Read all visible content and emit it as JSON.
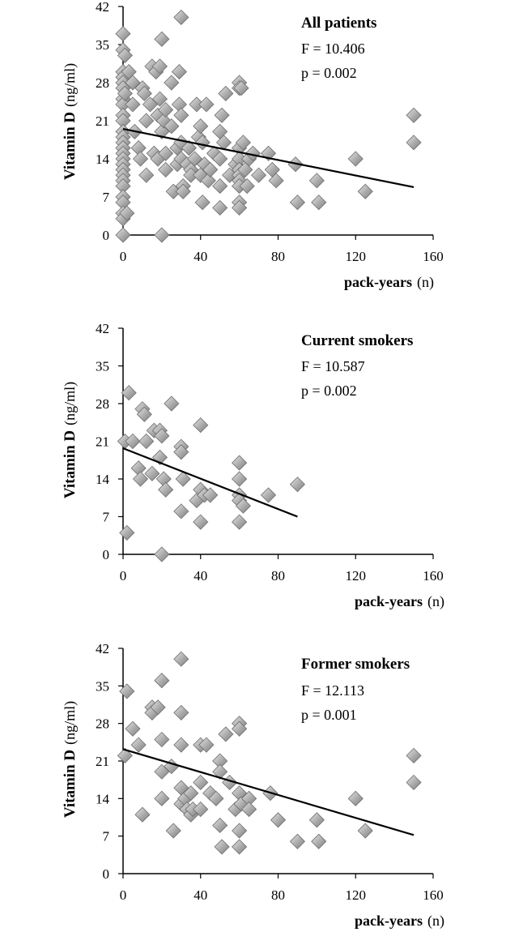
{
  "chart_data": [
    {
      "type": "scatter",
      "title": "All patients",
      "annotations": [
        "F = 10.406",
        "p = 0.002"
      ],
      "ylabel_bold": "Vitamin D",
      "ylabel_unit": "(ng/ml)",
      "xlabel_bold": "pack-years",
      "xlabel_unit": "(n)",
      "xlim": [
        0,
        160
      ],
      "ylim": [
        0,
        42
      ],
      "xticks": [
        "0",
        "40",
        "80",
        "120",
        "160"
      ],
      "yticks": [
        "0",
        "7",
        "14",
        "21",
        "28",
        "35",
        "42"
      ],
      "grid": false,
      "trendline": {
        "x": [
          0,
          150
        ],
        "y": [
          19.5,
          8.8
        ]
      },
      "points": [
        [
          0,
          37
        ],
        [
          0,
          34
        ],
        [
          0,
          30
        ],
        [
          0,
          29
        ],
        [
          0,
          28
        ],
        [
          0,
          27
        ],
        [
          0,
          25
        ],
        [
          0,
          24
        ],
        [
          0,
          22
        ],
        [
          0,
          21
        ],
        [
          0,
          19
        ],
        [
          0,
          18
        ],
        [
          0,
          17
        ],
        [
          0,
          16
        ],
        [
          0,
          15
        ],
        [
          0,
          14
        ],
        [
          0,
          13
        ],
        [
          0,
          12
        ],
        [
          0,
          11
        ],
        [
          0,
          10
        ],
        [
          0,
          9
        ],
        [
          0,
          7
        ],
        [
          0,
          6
        ],
        [
          0,
          4
        ],
        [
          0,
          3
        ],
        [
          0,
          0
        ],
        [
          1,
          33
        ],
        [
          1,
          26
        ],
        [
          2,
          4
        ],
        [
          3,
          30
        ],
        [
          5,
          28
        ],
        [
          5,
          24
        ],
        [
          6,
          19
        ],
        [
          8,
          16
        ],
        [
          9,
          14
        ],
        [
          10,
          27
        ],
        [
          11,
          26
        ],
        [
          12,
          21
        ],
        [
          12,
          11
        ],
        [
          14,
          24
        ],
        [
          15,
          31
        ],
        [
          16,
          15
        ],
        [
          17,
          30
        ],
        [
          18,
          22
        ],
        [
          18,
          14
        ],
        [
          19,
          25
        ],
        [
          19,
          31
        ],
        [
          20,
          36
        ],
        [
          20,
          19
        ],
        [
          20,
          0
        ],
        [
          21,
          21
        ],
        [
          22,
          23
        ],
        [
          22,
          15
        ],
        [
          22,
          12
        ],
        [
          25,
          20
        ],
        [
          25,
          28
        ],
        [
          26,
          8
        ],
        [
          28,
          16
        ],
        [
          28,
          13
        ],
        [
          29,
          30
        ],
        [
          29,
          24
        ],
        [
          30,
          40
        ],
        [
          30,
          22
        ],
        [
          30,
          17
        ],
        [
          30,
          14
        ],
        [
          31,
          9
        ],
        [
          31,
          8
        ],
        [
          33,
          13
        ],
        [
          34,
          16
        ],
        [
          35,
          12
        ],
        [
          35,
          11
        ],
        [
          37,
          14
        ],
        [
          38,
          24
        ],
        [
          39,
          18
        ],
        [
          40,
          20
        ],
        [
          40,
          11
        ],
        [
          41,
          17
        ],
        [
          41,
          6
        ],
        [
          42,
          13
        ],
        [
          43,
          24
        ],
        [
          44,
          10
        ],
        [
          45,
          12
        ],
        [
          47,
          15
        ],
        [
          50,
          9
        ],
        [
          50,
          19
        ],
        [
          50,
          14
        ],
        [
          50,
          5
        ],
        [
          51,
          22
        ],
        [
          52,
          17
        ],
        [
          53,
          26
        ],
        [
          55,
          11
        ],
        [
          58,
          13
        ],
        [
          60,
          28
        ],
        [
          60,
          27
        ],
        [
          60,
          16
        ],
        [
          60,
          14
        ],
        [
          60,
          12
        ],
        [
          60,
          11
        ],
        [
          60,
          10
        ],
        [
          60,
          9
        ],
        [
          60,
          6
        ],
        [
          60,
          5
        ],
        [
          61,
          27
        ],
        [
          62,
          17
        ],
        [
          63,
          12
        ],
        [
          64,
          9
        ],
        [
          65,
          14
        ],
        [
          67,
          15
        ],
        [
          70,
          11
        ],
        [
          75,
          15
        ],
        [
          77,
          12
        ],
        [
          79,
          10
        ],
        [
          89,
          13
        ],
        [
          90,
          6
        ],
        [
          100,
          10
        ],
        [
          101,
          6
        ],
        [
          120,
          14
        ],
        [
          125,
          8
        ],
        [
          150,
          22
        ],
        [
          150,
          17
        ]
      ]
    },
    {
      "type": "scatter",
      "title": "Current smokers",
      "annotations": [
        "F = 10.587",
        "p = 0.002"
      ],
      "ylabel_bold": "Vitamin D",
      "ylabel_unit": "(ng/ml)",
      "xlabel_bold": "pack-years",
      "xlabel_unit": "(n)",
      "xlim": [
        0,
        160
      ],
      "ylim": [
        0,
        42
      ],
      "xticks": [
        "0",
        "40",
        "80",
        "120",
        "160"
      ],
      "yticks": [
        "0",
        "7",
        "14",
        "21",
        "28",
        "35",
        "42"
      ],
      "grid": false,
      "trendline": {
        "x": [
          0,
          90
        ],
        "y": [
          19.7,
          7.0
        ]
      },
      "points": [
        [
          1,
          21
        ],
        [
          2,
          4
        ],
        [
          3,
          30
        ],
        [
          5,
          21
        ],
        [
          8,
          16
        ],
        [
          9,
          14
        ],
        [
          10,
          27
        ],
        [
          11,
          26
        ],
        [
          12,
          21
        ],
        [
          15,
          15
        ],
        [
          16,
          23
        ],
        [
          19,
          23
        ],
        [
          19,
          18
        ],
        [
          20,
          22
        ],
        [
          20,
          0
        ],
        [
          21,
          14
        ],
        [
          22,
          12
        ],
        [
          25,
          28
        ],
        [
          30,
          20
        ],
        [
          30,
          19
        ],
        [
          30,
          8
        ],
        [
          31,
          14
        ],
        [
          38,
          10
        ],
        [
          40,
          24
        ],
        [
          40,
          12
        ],
        [
          40,
          6
        ],
        [
          42,
          11
        ],
        [
          45,
          11
        ],
        [
          60,
          17
        ],
        [
          60,
          14
        ],
        [
          60,
          11
        ],
        [
          60,
          10
        ],
        [
          60,
          6
        ],
        [
          62,
          9
        ],
        [
          75,
          11
        ],
        [
          90,
          13
        ]
      ]
    },
    {
      "type": "scatter",
      "title": "Former smokers",
      "annotations": [
        "F = 12.113",
        "p = 0.001"
      ],
      "ylabel_bold": "Vitamin D",
      "ylabel_unit": "(ng/ml)",
      "xlabel_bold": "pack-years",
      "xlabel_unit": "(n)",
      "xlim": [
        0,
        160
      ],
      "ylim": [
        0,
        42
      ],
      "xticks": [
        "0",
        "40",
        "80",
        "120",
        "160"
      ],
      "yticks": [
        "0",
        "7",
        "14",
        "21",
        "28",
        "35",
        "42"
      ],
      "grid": false,
      "trendline": {
        "x": [
          0,
          150
        ],
        "y": [
          23.2,
          7.2
        ]
      },
      "points": [
        [
          1,
          22
        ],
        [
          2,
          34
        ],
        [
          5,
          27
        ],
        [
          8,
          24
        ],
        [
          10,
          11
        ],
        [
          15,
          31
        ],
        [
          15,
          30
        ],
        [
          18,
          31
        ],
        [
          20,
          36
        ],
        [
          20,
          25
        ],
        [
          20,
          19
        ],
        [
          20,
          14
        ],
        [
          25,
          20
        ],
        [
          26,
          8
        ],
        [
          30,
          40
        ],
        [
          30,
          30
        ],
        [
          30,
          24
        ],
        [
          30,
          16
        ],
        [
          30,
          13
        ],
        [
          32,
          14
        ],
        [
          33,
          12
        ],
        [
          35,
          11
        ],
        [
          35,
          15
        ],
        [
          36,
          12
        ],
        [
          40,
          24
        ],
        [
          40,
          17
        ],
        [
          40,
          12
        ],
        [
          43,
          24
        ],
        [
          45,
          15
        ],
        [
          48,
          14
        ],
        [
          50,
          21
        ],
        [
          50,
          19
        ],
        [
          50,
          9
        ],
        [
          51,
          5
        ],
        [
          53,
          26
        ],
        [
          55,
          17
        ],
        [
          58,
          12
        ],
        [
          60,
          28
        ],
        [
          60,
          27
        ],
        [
          60,
          15
        ],
        [
          60,
          8
        ],
        [
          60,
          5
        ],
        [
          61,
          13
        ],
        [
          65,
          14
        ],
        [
          65,
          12
        ],
        [
          76,
          15
        ],
        [
          80,
          10
        ],
        [
          90,
          6
        ],
        [
          100,
          10
        ],
        [
          101,
          6
        ],
        [
          120,
          14
        ],
        [
          125,
          8
        ],
        [
          150,
          22
        ],
        [
          150,
          17
        ]
      ]
    }
  ]
}
